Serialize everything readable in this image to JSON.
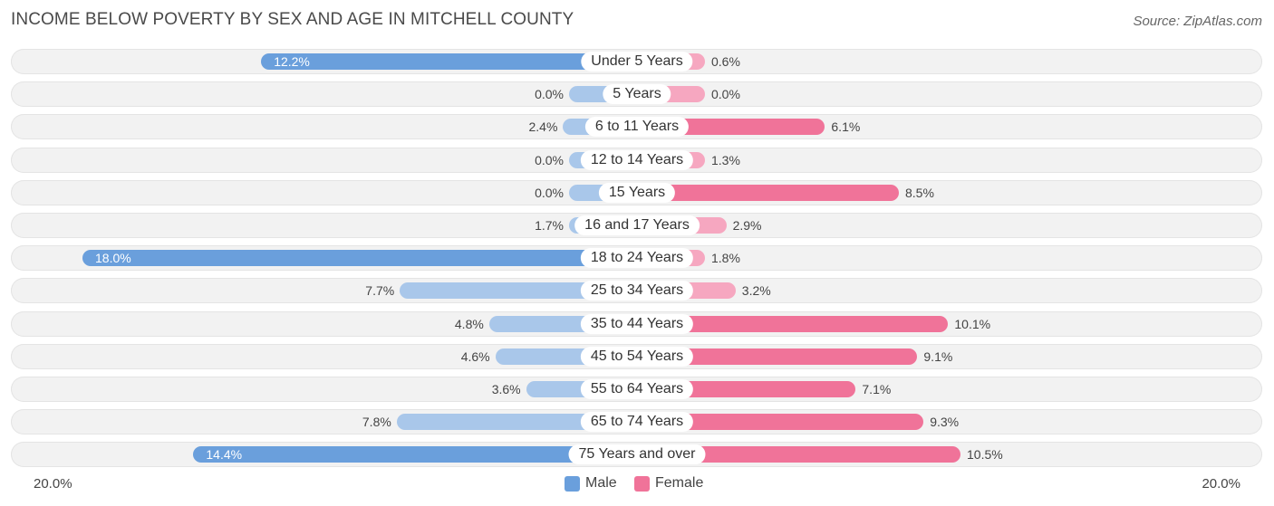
{
  "header": {
    "title": "INCOME BELOW POVERTY BY SEX AND AGE IN MITCHELL COUNTY",
    "source": "Source: ZipAtlas.com"
  },
  "colors": {
    "male": "#6a9fdc",
    "male_light": "#a9c7ea",
    "female": "#f07399",
    "female_light": "#f6a7c0"
  },
  "chart_data": {
    "type": "bar",
    "orientation": "horizontal-diverging",
    "title": "INCOME BELOW POVERTY BY SEX AND AGE IN MITCHELL COUNTY",
    "categories": [
      "Under 5 Years",
      "5 Years",
      "6 to 11 Years",
      "12 to 14 Years",
      "15 Years",
      "16 and 17 Years",
      "18 to 24 Years",
      "25 to 34 Years",
      "35 to 44 Years",
      "45 to 54 Years",
      "55 to 64 Years",
      "65 to 74 Years",
      "75 Years and over"
    ],
    "series": [
      {
        "name": "Male",
        "values": [
          12.2,
          0.0,
          2.4,
          0.0,
          0.0,
          1.7,
          18.0,
          7.7,
          4.8,
          4.6,
          3.6,
          7.8,
          14.4
        ],
        "labels": [
          "12.2%",
          "0.0%",
          "2.4%",
          "0.0%",
          "0.0%",
          "1.7%",
          "18.0%",
          "7.7%",
          "4.8%",
          "4.6%",
          "3.6%",
          "7.8%",
          "14.4%"
        ]
      },
      {
        "name": "Female",
        "values": [
          0.6,
          0.0,
          6.1,
          1.3,
          8.5,
          2.9,
          1.8,
          3.2,
          10.1,
          9.1,
          7.1,
          9.3,
          10.5
        ],
        "labels": [
          "0.6%",
          "0.0%",
          "6.1%",
          "1.3%",
          "8.5%",
          "2.9%",
          "1.8%",
          "3.2%",
          "10.1%",
          "9.1%",
          "7.1%",
          "9.3%",
          "10.5%"
        ]
      }
    ],
    "xlim": [
      -20,
      20
    ],
    "axis_labels": {
      "left": "20.0%",
      "right": "20.0%"
    },
    "legend": [
      "Male",
      "Female"
    ],
    "legend_position": "bottom-center"
  }
}
